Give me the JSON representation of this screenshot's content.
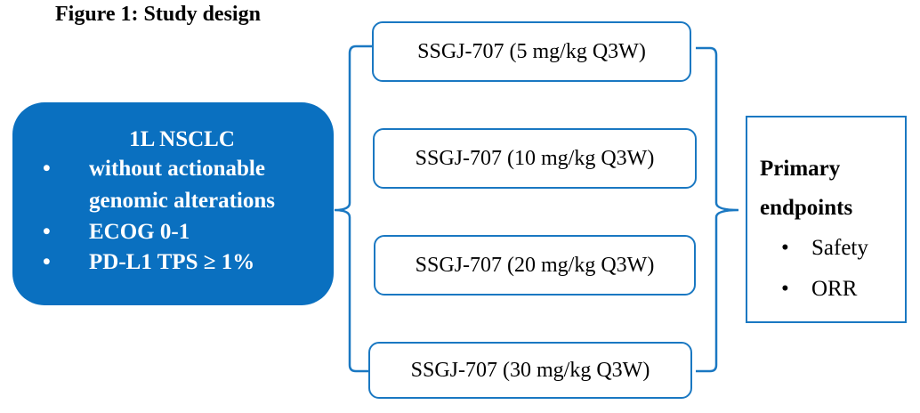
{
  "title": "Figure 1: Study design",
  "population": {
    "heading": "1L NSCLC",
    "criteria": [
      "without actionable genomic alterations",
      "ECOG 0-1",
      "PD-L1 TPS ≥ 1%"
    ],
    "bullet": "•"
  },
  "arms": [
    "SSGJ-707 (5 mg/kg Q3W)",
    "SSGJ-707 (10 mg/kg Q3W)",
    "SSGJ-707 (20 mg/kg Q3W)",
    "SSGJ-707 (30 mg/kg Q3W)"
  ],
  "endpoints": {
    "heading_line1": "Primary",
    "heading_line2": "endpoints",
    "items": [
      "Safety",
      "ORR"
    ]
  },
  "colors": {
    "accent": "#0a70c0",
    "outline": "#1a78c2"
  }
}
